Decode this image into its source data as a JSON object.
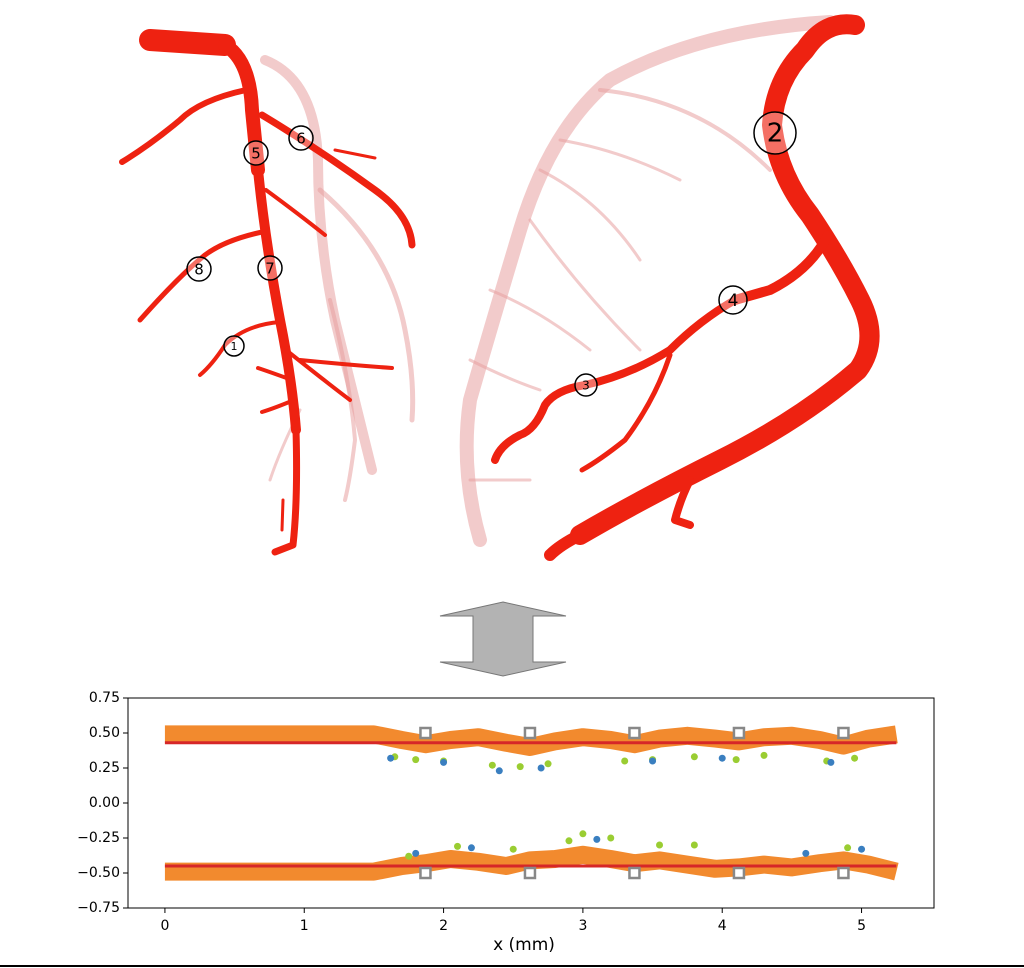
{
  "figure_labels": [
    "1",
    "2",
    "3",
    "4",
    "5",
    "6",
    "7",
    "8"
  ],
  "chart_data": {
    "type": "scatter",
    "xlabel": "x (mm)",
    "xlim": [
      -0.265,
      5.52
    ],
    "ylim": [
      -0.75,
      0.75
    ],
    "xticks": [
      0,
      1,
      2,
      3,
      4,
      5
    ],
    "yticks": [
      {
        "value": 0.75,
        "label": "0.75"
      },
      {
        "value": 0.5,
        "label": "0.50"
      },
      {
        "value": 0.25,
        "label": "0.25"
      },
      {
        "value": 0,
        "label": "0.00"
      },
      {
        "value": -0.25,
        "label": "−0.25"
      },
      {
        "value": -0.5,
        "label": "−0.50"
      },
      {
        "value": -0.75,
        "label": "−0.75"
      }
    ],
    "series": [
      {
        "marker": "line",
        "color": "#f28a2e",
        "x": [
          0,
          0.5,
          1,
          1.5,
          1.7,
          1.87,
          2.05,
          2.25,
          2.45,
          2.62,
          2.8,
          3.0,
          3.2,
          3.37,
          3.55,
          3.75,
          3.95,
          4.12,
          4.3,
          4.5,
          4.7,
          4.87,
          5.05,
          5.25
        ],
        "values": [
          0.49,
          0.49,
          0.49,
          0.49,
          0.45,
          0.42,
          0.45,
          0.47,
          0.43,
          0.4,
          0.44,
          0.47,
          0.45,
          0.42,
          0.46,
          0.48,
          0.46,
          0.44,
          0.47,
          0.48,
          0.45,
          0.41,
          0.46,
          0.49
        ]
      },
      {
        "marker": "line",
        "color": "#f28a2e",
        "x": [
          0,
          0.5,
          1,
          1.5,
          1.7,
          1.87,
          2.05,
          2.25,
          2.45,
          2.62,
          2.8,
          3.0,
          3.2,
          3.37,
          3.55,
          3.75,
          3.95,
          4.12,
          4.3,
          4.5,
          4.7,
          4.87,
          5.05,
          5.25
        ],
        "values": [
          -0.49,
          -0.49,
          -0.49,
          -0.49,
          -0.45,
          -0.43,
          -0.4,
          -0.42,
          -0.45,
          -0.41,
          -0.4,
          -0.37,
          -0.4,
          -0.43,
          -0.41,
          -0.44,
          -0.47,
          -0.46,
          -0.44,
          -0.46,
          -0.43,
          -0.41,
          -0.44,
          -0.49
        ]
      },
      {
        "marker": "line",
        "color": "#d62728",
        "x": [
          0,
          1.5,
          5.25
        ],
        "values": [
          0.43,
          0.43,
          0.43
        ]
      },
      {
        "marker": "line",
        "color": "#d62728",
        "x": [
          0,
          1.5,
          5.25
        ],
        "values": [
          -0.45,
          -0.45,
          -0.45
        ]
      },
      {
        "marker": "circle",
        "color": "#9acd32",
        "x": [
          1.65,
          1.8,
          2.0,
          2.35,
          2.55,
          2.75,
          3.3,
          3.5,
          3.8,
          4.1,
          4.3,
          4.75,
          4.95,
          1.75,
          2.1,
          2.5,
          2.9,
          3.0,
          3.2,
          3.55,
          3.8,
          4.9
        ],
        "values": [
          0.33,
          0.31,
          0.3,
          0.27,
          0.26,
          0.28,
          0.3,
          0.31,
          0.33,
          0.31,
          0.34,
          0.3,
          0.32,
          -0.38,
          -0.31,
          -0.33,
          -0.27,
          -0.22,
          -0.25,
          -0.3,
          -0.3,
          -0.32
        ]
      },
      {
        "marker": "circle",
        "color": "#3a7fc0",
        "x": [
          1.62,
          2.0,
          2.4,
          2.7,
          3.5,
          4.0,
          4.78,
          1.8,
          2.2,
          3.1,
          4.6,
          5.0
        ],
        "values": [
          0.32,
          0.29,
          0.23,
          0.25,
          0.3,
          0.32,
          0.29,
          -0.36,
          -0.32,
          -0.26,
          -0.36,
          -0.33
        ]
      },
      {
        "marker": "square",
        "color": "#888888",
        "x": [
          1.87,
          2.62,
          3.37,
          4.12,
          4.87,
          1.87,
          2.62,
          3.37,
          4.12,
          4.87
        ],
        "values": [
          0.5,
          0.5,
          0.5,
          0.5,
          0.5,
          -0.5,
          -0.5,
          -0.5,
          -0.5,
          -0.5
        ]
      }
    ]
  }
}
